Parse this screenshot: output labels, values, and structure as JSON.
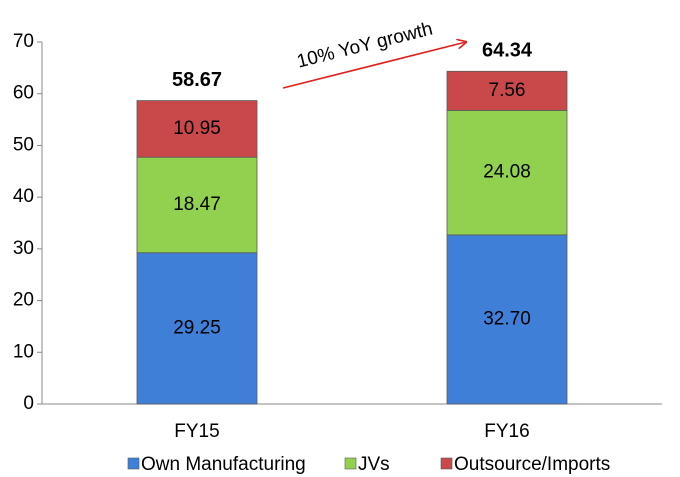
{
  "chart_data": {
    "type": "stacked_bar",
    "annotation": "10% YoY growth",
    "categories": [
      "FY15",
      "FY16"
    ],
    "series": [
      {
        "name": "Own Manufacturing",
        "color": "#3f7fd8",
        "values": [
          29.25,
          32.7
        ],
        "value_labels": [
          "29.25",
          "32.70"
        ]
      },
      {
        "name": "JVs",
        "color": "#92d050",
        "values": [
          18.47,
          24.08
        ]
      },
      {
        "name": "Outsource/Imports",
        "color": "#c9484a",
        "values": [
          10.95,
          7.56
        ]
      }
    ],
    "totals": [
      58.67,
      64.34
    ],
    "ylim": [
      0,
      70
    ],
    "yticks": [
      0,
      10,
      20,
      30,
      40,
      50,
      60,
      70
    ]
  }
}
